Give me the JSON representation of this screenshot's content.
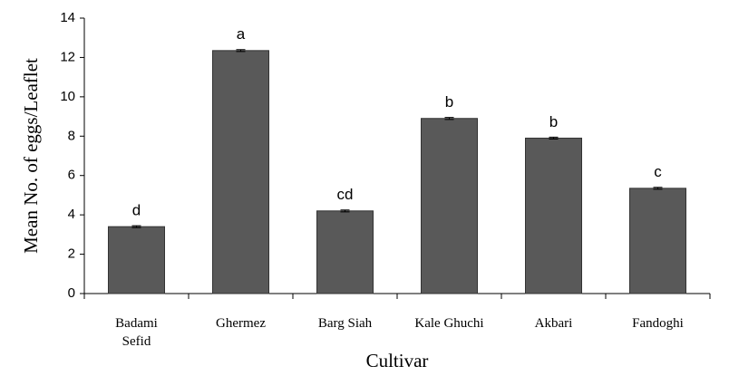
{
  "chart_data": {
    "type": "bar",
    "categories": [
      "Badami\nSefid",
      "Ghermez",
      "Barg Siah",
      "Kale Ghuchi",
      "Akbari",
      "Fandoghi"
    ],
    "values": [
      3.4,
      12.35,
      4.2,
      8.9,
      7.9,
      5.35
    ],
    "errors": [
      0.05,
      0.05,
      0.05,
      0.05,
      0.05,
      0.05
    ],
    "group_letters": [
      "d",
      "a",
      "cd",
      "b",
      "b",
      "c"
    ],
    "color": "#595959",
    "xlabel": "Cultivar",
    "ylabel": "Mean No. of eggs/Leaflet",
    "ylim": [
      0,
      14
    ],
    "yticks": [
      0,
      2,
      4,
      6,
      8,
      10,
      12,
      14
    ],
    "grid": false
  }
}
